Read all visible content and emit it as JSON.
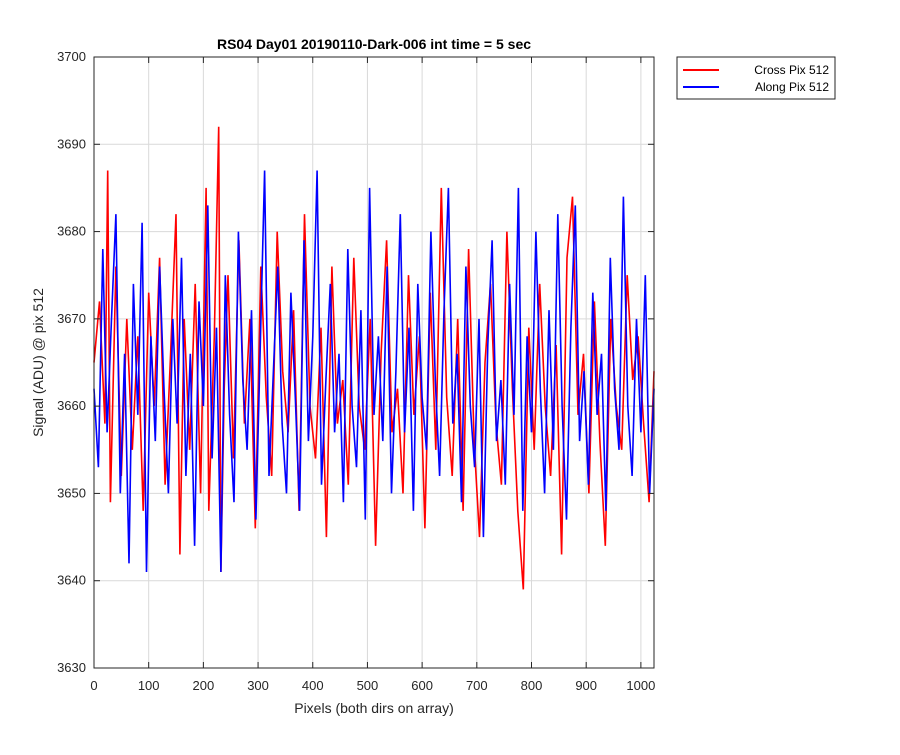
{
  "chart_data": {
    "type": "line",
    "title": "RS04 Day01 20190110-Dark-006 int time = 5 sec",
    "xlabel": "Pixels (both dirs on array)",
    "ylabel": "Signal (ADU) @ pix 512",
    "xlim": [
      0,
      1024
    ],
    "ylim": [
      3630,
      3700
    ],
    "xticks": [
      0,
      100,
      200,
      300,
      400,
      500,
      600,
      700,
      800,
      900,
      1000
    ],
    "yticks": [
      3630,
      3640,
      3650,
      3660,
      3670,
      3680,
      3690,
      3700
    ],
    "grid": true,
    "legend_position": "outside-top-right",
    "series": [
      {
        "name": "Cross Pix 512",
        "color": "#ff0000",
        "x": [
          0,
          10,
          20,
          25,
          30,
          40,
          50,
          60,
          70,
          80,
          90,
          100,
          110,
          120,
          130,
          140,
          150,
          157,
          165,
          175,
          185,
          195,
          205,
          210,
          220,
          228,
          232,
          238,
          245,
          255,
          265,
          275,
          285,
          295,
          305,
          315,
          325,
          335,
          345,
          355,
          365,
          375,
          385,
          395,
          405,
          415,
          425,
          435,
          445,
          455,
          465,
          475,
          485,
          495,
          505,
          515,
          525,
          535,
          545,
          555,
          565,
          575,
          585,
          595,
          605,
          615,
          625,
          635,
          645,
          655,
          665,
          675,
          685,
          695,
          705,
          715,
          725,
          735,
          745,
          755,
          765,
          775,
          785,
          795,
          805,
          815,
          825,
          835,
          845,
          855,
          865,
          875,
          885,
          895,
          905,
          915,
          925,
          935,
          945,
          955,
          965,
          975,
          985,
          995,
          1005,
          1015,
          1024
        ],
        "y": [
          3665,
          3672,
          3658,
          3687,
          3649,
          3676,
          3652,
          3670,
          3655,
          3668,
          3648,
          3673,
          3660,
          3677,
          3651,
          3666,
          3682,
          3643,
          3670,
          3655,
          3674,
          3650,
          3685,
          3648,
          3668,
          3692,
          3641,
          3662,
          3675,
          3654,
          3679,
          3658,
          3670,
          3646,
          3676,
          3661,
          3652,
          3680,
          3664,
          3657,
          3671,
          3648,
          3682,
          3660,
          3654,
          3669,
          3645,
          3676,
          3658,
          3663,
          3651,
          3677,
          3660,
          3655,
          3670,
          3644,
          3666,
          3679,
          3657,
          3662,
          3650,
          3675,
          3659,
          3668,
          3646,
          3673,
          3655,
          3685,
          3661,
          3652,
          3670,
          3648,
          3678,
          3656,
          3645,
          3665,
          3674,
          3658,
          3651,
          3680,
          3662,
          3648,
          3639,
          3669,
          3655,
          3674,
          3660,
          3652,
          3667,
          3643,
          3677,
          3684,
          3659,
          3666,
          3650,
          3672,
          3656,
          3644,
          3670,
          3660,
          3655,
          3675,
          3663,
          3668,
          3658,
          3649,
          3664
        ]
      },
      {
        "name": "Along Pix 512",
        "color": "#0000ff",
        "x": [
          0,
          8,
          16,
          24,
          32,
          40,
          48,
          56,
          64,
          72,
          80,
          88,
          96,
          104,
          112,
          120,
          128,
          136,
          144,
          152,
          160,
          168,
          176,
          184,
          192,
          200,
          208,
          216,
          224,
          232,
          240,
          248,
          256,
          264,
          272,
          280,
          288,
          296,
          304,
          312,
          320,
          328,
          336,
          344,
          352,
          360,
          368,
          376,
          384,
          392,
          400,
          408,
          416,
          424,
          432,
          440,
          448,
          456,
          464,
          472,
          480,
          488,
          496,
          504,
          512,
          520,
          528,
          536,
          544,
          552,
          560,
          568,
          576,
          584,
          592,
          600,
          608,
          616,
          624,
          632,
          640,
          648,
          656,
          664,
          672,
          680,
          688,
          696,
          704,
          712,
          720,
          728,
          736,
          744,
          752,
          760,
          768,
          776,
          784,
          792,
          800,
          808,
          816,
          824,
          832,
          840,
          848,
          856,
          864,
          872,
          880,
          888,
          896,
          904,
          912,
          920,
          928,
          936,
          944,
          952,
          960,
          968,
          976,
          984,
          992,
          1000,
          1008,
          1016,
          1024
        ],
        "y": [
          3662,
          3653,
          3678,
          3657,
          3670,
          3682,
          3650,
          3666,
          3642,
          3674,
          3659,
          3681,
          3641,
          3668,
          3656,
          3676,
          3662,
          3650,
          3670,
          3658,
          3677,
          3652,
          3666,
          3644,
          3672,
          3660,
          3683,
          3654,
          3669,
          3641,
          3675,
          3659,
          3649,
          3680,
          3663,
          3655,
          3671,
          3647,
          3667,
          3687,
          3652,
          3664,
          3676,
          3658,
          3650,
          3673,
          3661,
          3648,
          3679,
          3656,
          3668,
          3687,
          3651,
          3663,
          3674,
          3657,
          3666,
          3649,
          3678,
          3660,
          3653,
          3671,
          3647,
          3685,
          3659,
          3668,
          3656,
          3676,
          3650,
          3664,
          3682,
          3657,
          3669,
          3648,
          3674,
          3661,
          3655,
          3680,
          3663,
          3652,
          3671,
          3685,
          3658,
          3666,
          3649,
          3676,
          3660,
          3653,
          3670,
          3645,
          3667,
          3679,
          3656,
          3663,
          3651,
          3674,
          3659,
          3685,
          3648,
          3668,
          3657,
          3680,
          3662,
          3650,
          3671,
          3655,
          3682,
          3660,
          3647,
          3669,
          3683,
          3656,
          3664,
          3651,
          3673,
          3659,
          3666,
          3648,
          3677,
          3662,
          3655,
          3684,
          3660,
          3652,
          3670,
          3657,
          3675,
          3650,
          3662
        ]
      }
    ]
  }
}
